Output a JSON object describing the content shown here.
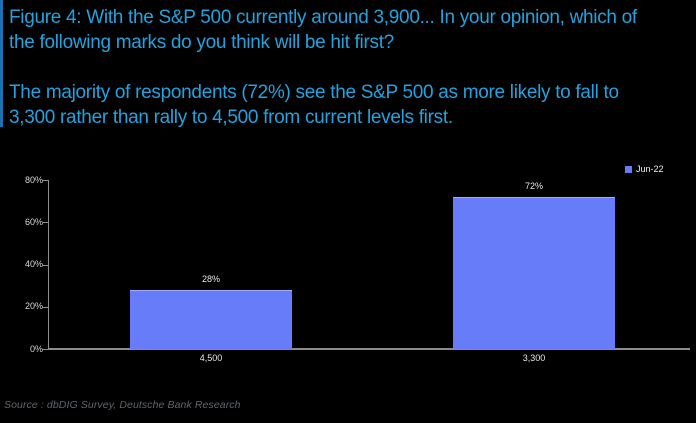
{
  "header": {
    "title_lines": [
      "Figure 4: With the S&P 500 currently around 3,900... In your opinion, which of",
      "the following marks do you think will be hit first?"
    ],
    "subtitle_lines": [
      "The majority of respondents (72%) see the S&P 500 as more likely to fall to",
      "3,300 rather than rally to 4,500 from current levels first."
    ]
  },
  "chart_data": {
    "type": "bar",
    "categories": [
      "4,500",
      "3,300"
    ],
    "series": [
      {
        "name": "Jun-22",
        "values": [
          28,
          72
        ]
      }
    ],
    "value_labels": [
      "28%",
      "72%"
    ],
    "y_ticks": [
      "0%",
      "20%",
      "40%",
      "60%",
      "80%"
    ],
    "ylim": [
      0,
      80
    ],
    "grid": false,
    "legend_position": "top-right",
    "title": "",
    "xlabel": "",
    "ylabel": ""
  },
  "footer": {
    "source": "Source : dbDIG Survey, Deutsche Bank Research"
  },
  "colors": {
    "background": "#000000",
    "title_text": "#25a2de",
    "accent_bar": "#1a72b2",
    "bar_fill": "#667cf8",
    "axis_line": "#8c8c8c",
    "axis_label": "#d9d9d9",
    "value_label": "#e8e8e8",
    "source_text": "#5f656e"
  }
}
